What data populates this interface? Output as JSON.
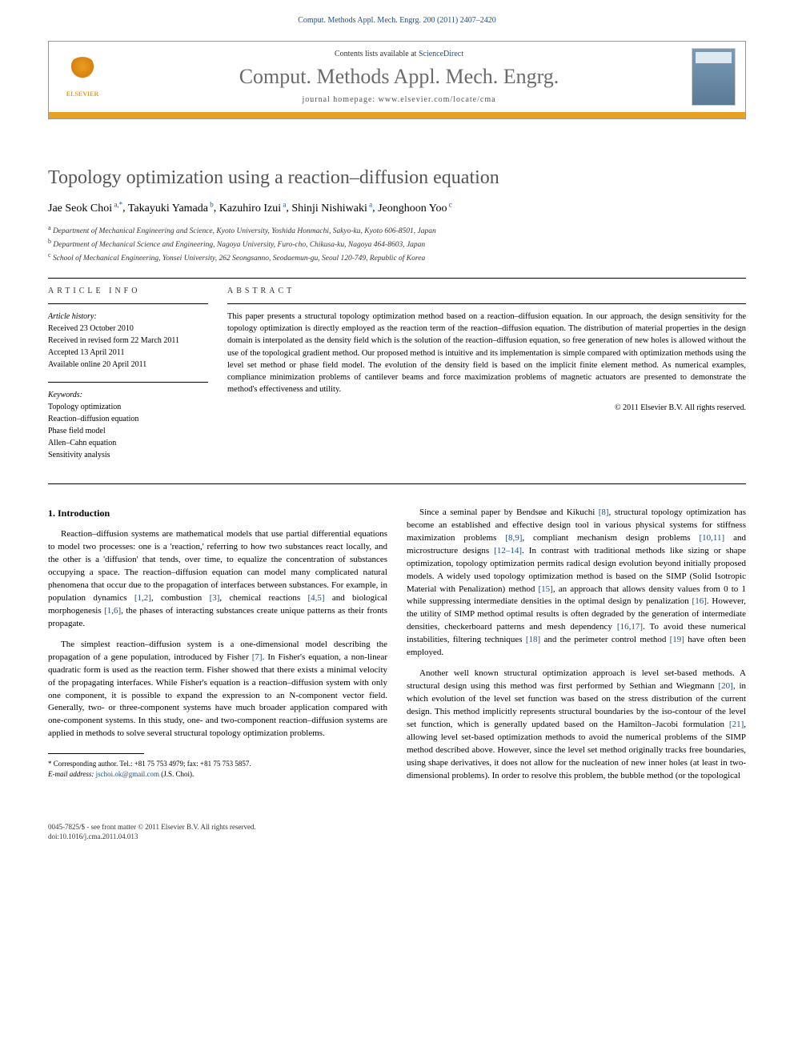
{
  "header": {
    "citation": "Comput. Methods Appl. Mech. Engrg. 200 (2011) 2407–2420"
  },
  "journal_box": {
    "publisher_name": "ELSEVIER",
    "contents_prefix": "Contents lists available at ",
    "contents_link": "ScienceDirect",
    "journal_name": "Comput. Methods Appl. Mech. Engrg.",
    "homepage_prefix": "journal homepage: ",
    "homepage_url": "www.elsevier.com/locate/cma"
  },
  "article": {
    "title": "Topology optimization using a reaction–diffusion equation",
    "authors_html": "Jae Seok Choi",
    "authors": [
      {
        "name": "Jae Seok Choi",
        "marks": "a,*"
      },
      {
        "name": "Takayuki Yamada",
        "marks": "b"
      },
      {
        "name": "Kazuhiro Izui",
        "marks": "a"
      },
      {
        "name": "Shinji Nishiwaki",
        "marks": "a"
      },
      {
        "name": "Jeonghoon Yoo",
        "marks": "c"
      }
    ],
    "affiliations": [
      {
        "mark": "a",
        "text": "Department of Mechanical Engineering and Science, Kyoto University, Yoshida Honmachi, Sakyo-ku, Kyoto 606-8501, Japan"
      },
      {
        "mark": "b",
        "text": "Department of Mechanical Science and Engineering, Nagoya University, Furo-cho, Chikusa-ku, Nagoya 464-8603, Japan"
      },
      {
        "mark": "c",
        "text": "School of Mechanical Engineering, Yonsei University, 262 Seongsanno, Seodaemun-gu, Seoul 120-749, Republic of Korea"
      }
    ]
  },
  "info": {
    "label": "ARTICLE INFO",
    "history_label": "Article history:",
    "history": [
      "Received 23 October 2010",
      "Received in revised form 22 March 2011",
      "Accepted 13 April 2011",
      "Available online 20 April 2011"
    ],
    "keywords_label": "Keywords:",
    "keywords": [
      "Topology optimization",
      "Reaction–diffusion equation",
      "Phase field model",
      "Allen–Cahn equation",
      "Sensitivity analysis"
    ]
  },
  "abstract": {
    "label": "ABSTRACT",
    "text": "This paper presents a structural topology optimization method based on a reaction–diffusion equation. In our approach, the design sensitivity for the topology optimization is directly employed as the reaction term of the reaction–diffusion equation. The distribution of material properties in the design domain is interpolated as the density field which is the solution of the reaction–diffusion equation, so free generation of new holes is allowed without the use of the topological gradient method. Our proposed method is intuitive and its implementation is simple compared with optimization methods using the level set method or phase field model. The evolution of the density field is based on the implicit finite element method. As numerical examples, compliance minimization problems of cantilever beams and force maximization problems of magnetic actuators are presented to demonstrate the method's effectiveness and utility.",
    "copyright": "© 2011 Elsevier B.V. All rights reserved."
  },
  "body": {
    "section_heading": "1. Introduction",
    "left_paragraphs": [
      "Reaction–diffusion systems are mathematical models that use partial differential equations to model two processes: one is a 'reaction,' referring to how two substances react locally, and the other is a 'diffusion' that tends, over time, to equalize the concentration of substances occupying a space. The reaction–diffusion equation can model many complicated natural phenomena that occur due to the propagation of interfaces between substances. For example, in population dynamics [1,2], combustion [3], chemical reactions [4,5] and biological morphogenesis [1,6], the phases of interacting substances create unique patterns as their fronts propagate.",
      "The simplest reaction–diffusion system is a one-dimensional model describing the propagation of a gene population, introduced by Fisher [7]. In Fisher's equation, a non-linear quadratic form is used as the reaction term. Fisher showed that there exists a minimal velocity of the propagating interfaces. While Fisher's equation is a reaction–diffusion system with only one component, it is possible to expand the expression to an N-component vector field. Generally, two- or three-component systems have much broader application compared with one-component systems. In this study, one- and two-component reaction–diffusion systems are applied in methods to solve several structural topology optimization problems."
    ],
    "right_paragraphs": [
      "Since a seminal paper by Bendsøe and Kikuchi [8], structural topology optimization has become an established and effective design tool in various physical systems for stiffness maximization problems [8,9], compliant mechanism design problems [10,11] and microstructure designs [12–14]. In contrast with traditional methods like sizing or shape optimization, topology optimization permits radical design evolution beyond initially proposed models. A widely used topology optimization method is based on the SIMP (Solid Isotropic Material with Penalization) method [15], an approach that allows density values from 0 to 1 while suppressing intermediate densities in the optimal design by penalization [16]. However, the utility of SIMP method optimal results is often degraded by the generation of intermediate densities, checkerboard patterns and mesh dependency [16,17]. To avoid these numerical instabilities, filtering techniques [18] and the perimeter control method [19] have often been employed.",
      "Another well known structural optimization approach is level set-based methods. A structural design using this method was first performed by Sethian and Wiegmann [20], in which evolution of the level set function was based on the stress distribution of the current design. This method implicitly represents structural boundaries by the iso-contour of the level set function, which is generally updated based on the Hamilton–Jacobi formulation [21], allowing level set-based optimization methods to avoid the numerical problems of the SIMP method described above. However, since the level set method originally tracks free boundaries, using shape derivatives, it does not allow for the nucleation of new inner holes (at least in two-dimensional problems). In order to resolve this problem, the bubble method (or the topological"
    ]
  },
  "footnote": {
    "corr": "* Corresponding author. Tel.: +81 75 753 4979; fax: +81 75 753 5857.",
    "email_label": "E-mail address:",
    "email": "jschoi.ok@gmail.com",
    "email_person": "(J.S. Choi)."
  },
  "footer": {
    "line1": "0045-7825/$ - see front matter © 2011 Elsevier B.V. All rights reserved.",
    "line2": "doi:10.1016/j.cma.2011.04.013"
  },
  "colors": {
    "link": "#1a4d8f",
    "orange": "#e8a020",
    "title_gray": "#555555"
  }
}
